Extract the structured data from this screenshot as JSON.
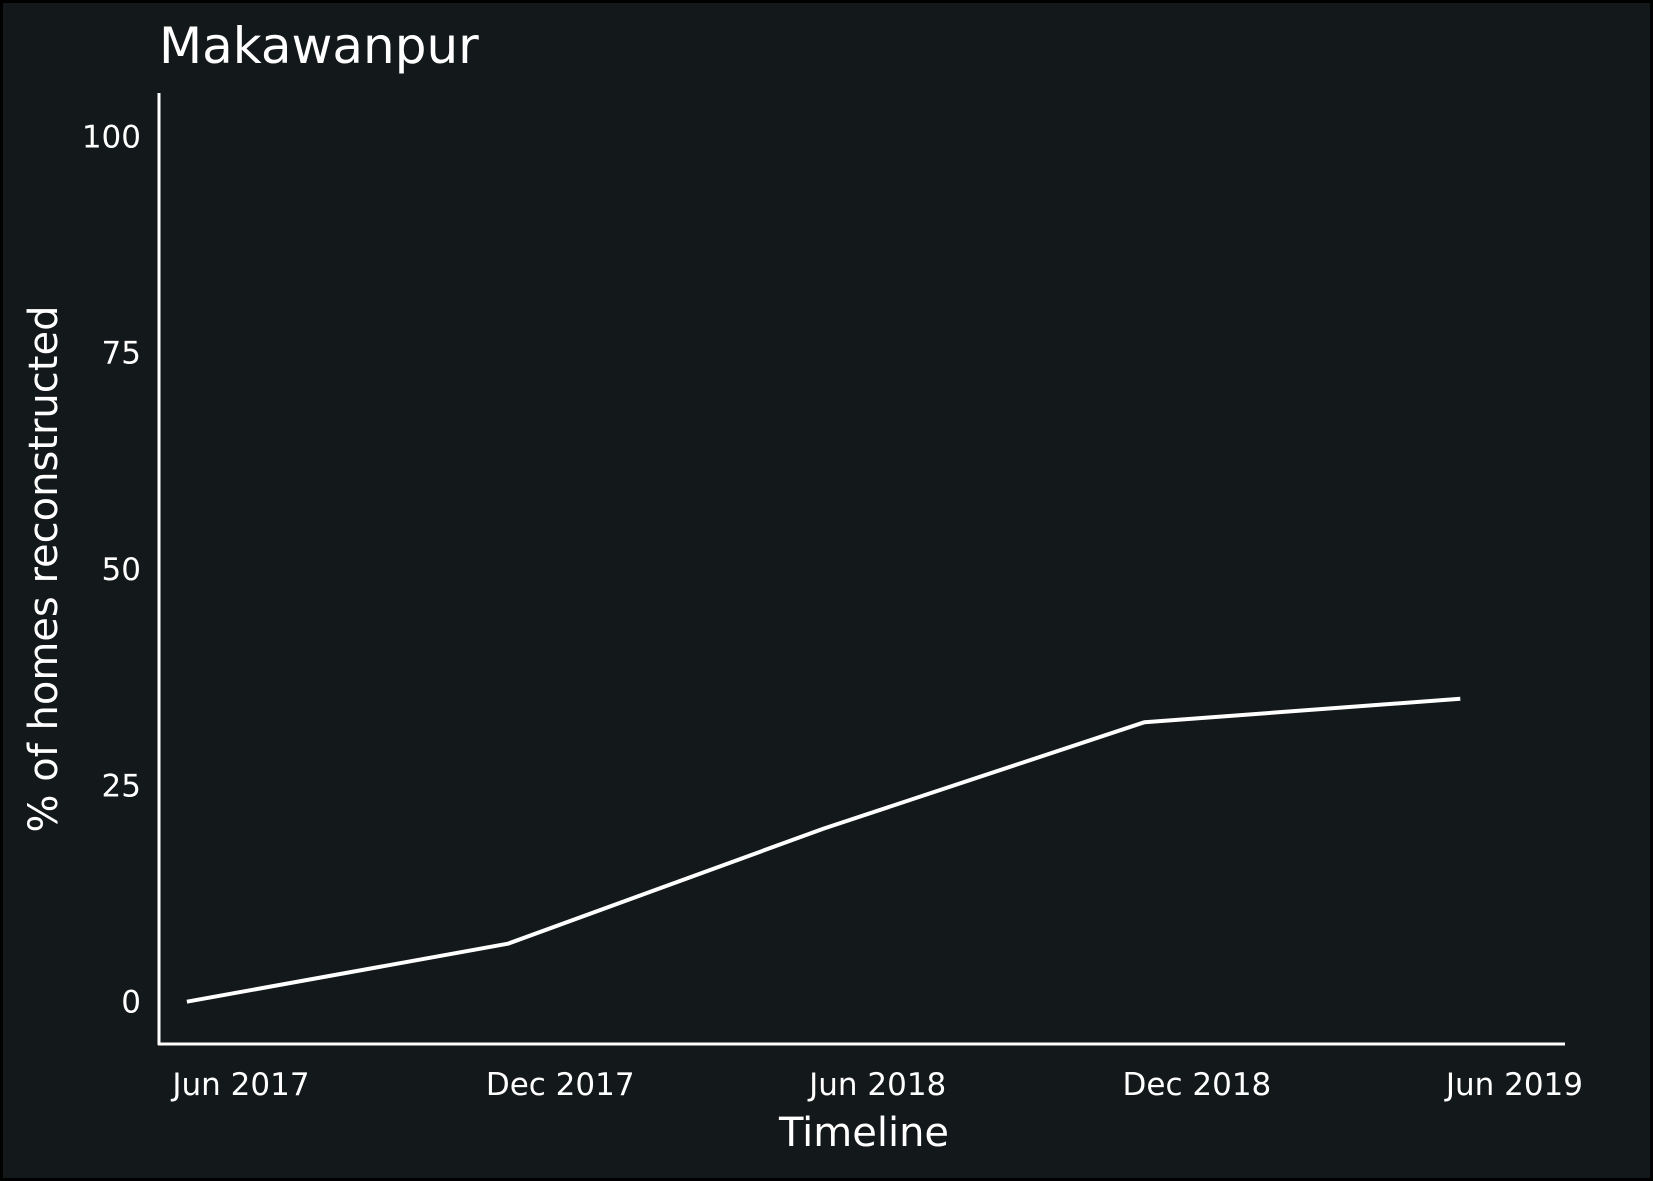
{
  "chart_data": {
    "type": "line",
    "title": "Makawanpur",
    "xlabel": "Timeline",
    "ylabel": "% of homes reconstructed",
    "x_ticks": [
      "Jun 2017",
      "Dec 2017",
      "Jun 2018",
      "Dec 2018",
      "Jun 2019"
    ],
    "y_ticks": [
      "0",
      "25",
      "50",
      "75",
      "100"
    ],
    "ylim": [
      -5,
      105
    ],
    "xlim": [
      "2017-04-15",
      "2019-06-30"
    ],
    "grid": false,
    "series": [
      {
        "x": [
          "2017-05-01",
          "2017-11-01",
          "2018-05-01",
          "2018-11-01",
          "2019-05-01"
        ],
        "y": [
          0,
          6.7,
          20,
          32.3,
          35
        ]
      }
    ],
    "colors": {
      "background": "#13181a",
      "line": "#ffffff",
      "text": "#ffffff"
    }
  }
}
